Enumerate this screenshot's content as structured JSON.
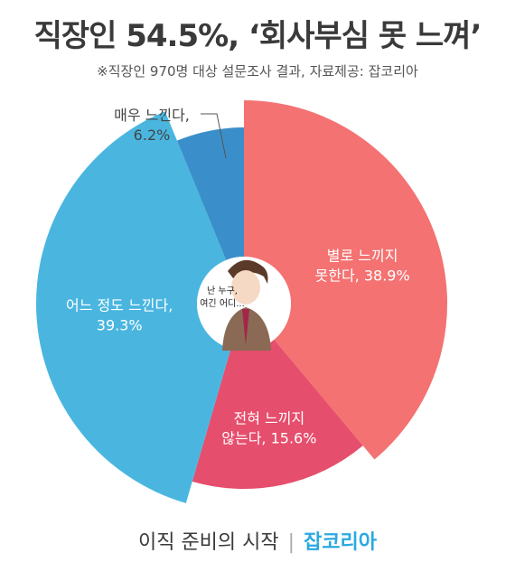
{
  "header": {
    "title": "직장인 54.5%, ‘회사부심 못 느껴’",
    "subtitle": "※직장인 970명 대상 설문조사 결과,  자료제공: 잡코리아"
  },
  "chart_data": {
    "type": "pie",
    "donut": true,
    "slices": [
      {
        "label_line1": "별로 느끼지",
        "label_line2": "못한다, 38.9%",
        "value": 38.9,
        "color": "#f47272"
      },
      {
        "label_line1": "전혀 느끼지",
        "label_line2": "않는다, 15.6%",
        "value": 15.6,
        "color": "#e54e6c"
      },
      {
        "label_line1": "어느 정도 느낀다,",
        "label_line2": "39.3%",
        "value": 39.3,
        "color": "#4ab6e0"
      },
      {
        "label_line1": "매우 느낀다,",
        "label_line2": "6.2%",
        "value": 6.2,
        "color": "#3a8fca"
      }
    ],
    "center_bubble": {
      "line1": "난 누구,",
      "line2": "여긴 어디..."
    }
  },
  "footer": {
    "tagline": "이직 준비의 시작",
    "brand": "잡코리아"
  }
}
